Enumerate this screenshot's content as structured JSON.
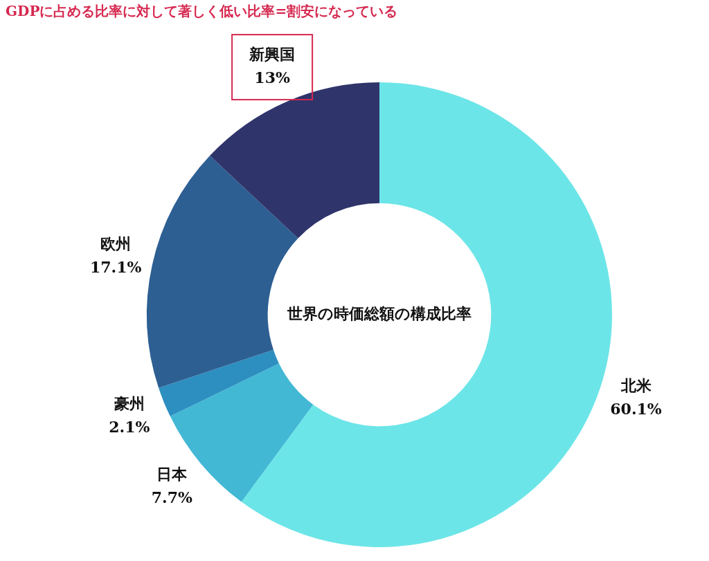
{
  "chart_data": {
    "type": "doughnut",
    "title": "世界の時価総額の構成比率",
    "categories": [
      "北米",
      "日本",
      "豪州",
      "欧州",
      "新興国"
    ],
    "values": [
      60.1,
      7.7,
      2.1,
      17.1,
      13
    ],
    "value_labels": [
      "60.1%",
      "7.7%",
      "2.1%",
      "17.1%",
      "13%"
    ],
    "colors": [
      "#6ce5e8",
      "#42b8d5",
      "#2d8fc0",
      "#2d5f93",
      "#2f346b"
    ],
    "data_labels": true,
    "annotations": [
      {
        "text": "GDPに占める比率に対して著しく低い比率=割安になっている",
        "category": "新興国"
      }
    ]
  }
}
